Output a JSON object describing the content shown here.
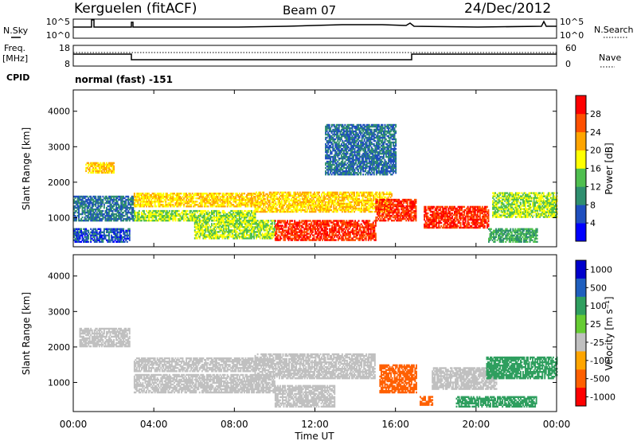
{
  "header": {
    "station": "Kerguelen (fitACF)",
    "beam": "Beam 07",
    "date": "24/Dec/2012"
  },
  "status_panel": {
    "nsky_label": "N.Sky",
    "nsearch_label": "N.Search",
    "freq_label_1": "Freq.",
    "freq_label_2": "[MHz]",
    "nave_label": "Nave",
    "cpid_label": "CPID",
    "cpid_value": "normal (fast) -151",
    "left_ticks_noise": [
      "10^5",
      "10^0"
    ],
    "right_ticks_noise": [
      "10^5",
      "10^0"
    ],
    "left_ticks_freq": [
      "18",
      "8"
    ],
    "right_ticks_nave": [
      "60",
      "0"
    ]
  },
  "chart_data": [
    {
      "type": "heatmap",
      "name": "power",
      "ylabel": "Slant Range [km]",
      "xlabel": "",
      "ylim": [
        180,
        4600
      ],
      "yticks": [
        "1000",
        "2000",
        "3000",
        "4000"
      ],
      "xlim_hours": [
        0,
        24
      ],
      "colorbar": {
        "label": "Power [dB]",
        "ticks": [
          "4",
          "8",
          "12",
          "16",
          "20",
          "24",
          "28"
        ],
        "colors": [
          "#0000ff",
          "#1f4fbf",
          "#2f8f6f",
          "#4fbf4f",
          "#ffff00",
          "#ffa500",
          "#ff5000",
          "#ff0000"
        ]
      },
      "regions": [
        {
          "t0": 0.0,
          "t1": 2.8,
          "r0": 300,
          "r1": 700,
          "v": 6
        },
        {
          "t0": 0.0,
          "t1": 3.0,
          "r0": 900,
          "r1": 1600,
          "v": 8
        },
        {
          "t0": 0.6,
          "t1": 2.0,
          "r0": 2250,
          "r1": 2550,
          "v": 20
        },
        {
          "t0": 3.0,
          "t1": 9.0,
          "r0": 1300,
          "r1": 1700,
          "v": 20
        },
        {
          "t0": 3.0,
          "t1": 9.0,
          "r0": 900,
          "r1": 1200,
          "v": 16
        },
        {
          "t0": 6.0,
          "t1": 10.0,
          "r0": 400,
          "r1": 900,
          "v": 16
        },
        {
          "t0": 10.0,
          "t1": 15.0,
          "r0": 350,
          "r1": 900,
          "v": 28
        },
        {
          "t0": 9.0,
          "t1": 15.8,
          "r0": 1150,
          "r1": 1700,
          "v": 20
        },
        {
          "t0": 15.0,
          "t1": 17.0,
          "r0": 900,
          "r1": 1500,
          "v": 28
        },
        {
          "t0": 12.5,
          "t1": 16.0,
          "r0": 2200,
          "r1": 3600,
          "v": 8
        },
        {
          "t0": 17.4,
          "t1": 20.6,
          "r0": 700,
          "r1": 1300,
          "v": 28
        },
        {
          "t0": 20.6,
          "t1": 23.0,
          "r0": 300,
          "r1": 700,
          "v": 12
        },
        {
          "t0": 20.8,
          "t1": 24.0,
          "r0": 1000,
          "r1": 1700,
          "v": 16
        }
      ]
    },
    {
      "type": "heatmap",
      "name": "velocity",
      "ylabel": "Slant Range [km]",
      "xlabel": "Time UT",
      "ylim": [
        180,
        4600
      ],
      "yticks": [
        "1000",
        "2000",
        "3000",
        "4000"
      ],
      "xticks": [
        "00:00",
        "04:00",
        "08:00",
        "12:00",
        "16:00",
        "20:00",
        "00:00"
      ],
      "xlim_hours": [
        0,
        24
      ],
      "colorbar": {
        "label": "Velocity [m s⁻¹]",
        "ticks": [
          "1000",
          "500",
          "100",
          "25",
          "-25",
          "-100",
          "-500",
          "-1000"
        ],
        "colors": [
          "#0000cc",
          "#1f5fbf",
          "#2f9f5f",
          "#66cc33",
          "#c0c0c0",
          "#ffa500",
          "#ff6000",
          "#ff0000"
        ]
      },
      "regions": [
        {
          "t0": 0.3,
          "t1": 2.8,
          "r0": 2000,
          "r1": 2500,
          "v": 0
        },
        {
          "t0": 3.0,
          "t1": 9.0,
          "r0": 1300,
          "r1": 1700,
          "v": 0
        },
        {
          "t0": 3.0,
          "t1": 10.0,
          "r0": 700,
          "r1": 1200,
          "v": 0
        },
        {
          "t0": 9.0,
          "t1": 15.0,
          "r0": 1100,
          "r1": 1800,
          "v": 0
        },
        {
          "t0": 10.0,
          "t1": 13.0,
          "r0": 300,
          "r1": 900,
          "v": 0
        },
        {
          "t0": 15.2,
          "t1": 17.0,
          "r0": 700,
          "r1": 1500,
          "v": -300
        },
        {
          "t0": 17.2,
          "t1": 17.8,
          "r0": 350,
          "r1": 600,
          "v": -300
        },
        {
          "t0": 17.8,
          "t1": 21.0,
          "r0": 800,
          "r1": 1400,
          "v": 0
        },
        {
          "t0": 20.5,
          "t1": 24.0,
          "r0": 1100,
          "r1": 1700,
          "v": 150
        },
        {
          "t0": 19.0,
          "t1": 23.0,
          "r0": 300,
          "r1": 600,
          "v": 150
        }
      ]
    }
  ]
}
